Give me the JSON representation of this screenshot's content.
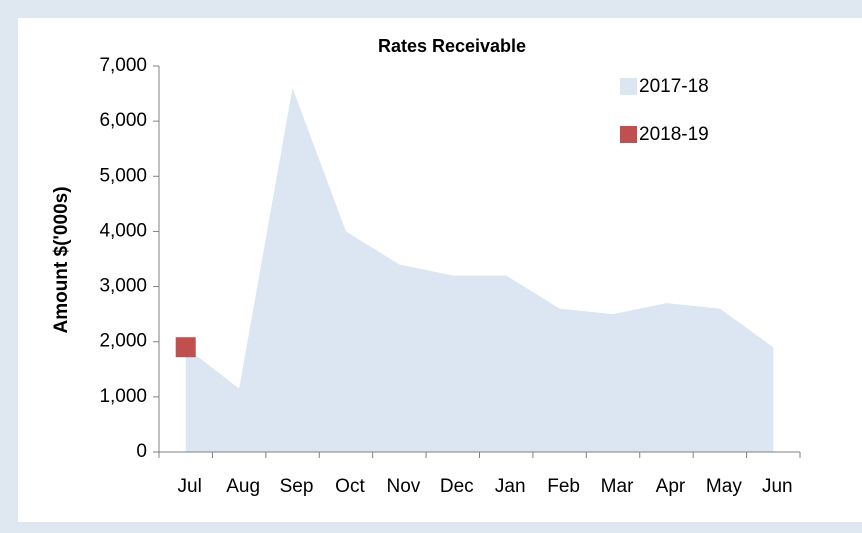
{
  "chart_data": {
    "type": "area",
    "title": "Rates Receivable",
    "y_label": "Amount $('000s)",
    "categories": [
      "Jul",
      "Aug",
      "Sep",
      "Oct",
      "Nov",
      "Dec",
      "Jan",
      "Feb",
      "Mar",
      "Apr",
      "May",
      "Jun"
    ],
    "series": [
      {
        "name": "2017-18",
        "color": "#dce6f2",
        "type": "area",
        "values": [
          1900,
          1150,
          6600,
          4000,
          3400,
          3200,
          3200,
          2600,
          2500,
          2700,
          2600,
          1900
        ]
      },
      {
        "name": "2018-19",
        "color": "#c0504d",
        "type": "marker",
        "values": [
          1900,
          null,
          null,
          null,
          null,
          null,
          null,
          null,
          null,
          null,
          null,
          null
        ]
      }
    ],
    "ylim": [
      0,
      7000
    ],
    "yticks": [
      0,
      {
        "value": 1000,
        "label": "1,000"
      },
      {
        "value": 2000,
        "label": "2,000"
      },
      {
        "value": 3000,
        "label": "3,000"
      },
      {
        "value": 4000,
        "label": "4,000"
      },
      {
        "value": 5000,
        "label": "5,000"
      },
      {
        "value": 6000,
        "label": "6,000"
      },
      {
        "value": 7000,
        "label": "7,000"
      }
    ],
    "grid": false,
    "legend": "top-right"
  }
}
